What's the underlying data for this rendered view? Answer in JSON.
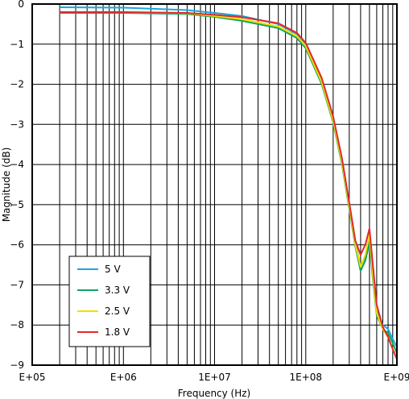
{
  "chart_data": {
    "type": "line",
    "xlabel": "Frequency (Hz)",
    "ylabel": "Magnitude (dB)",
    "xscale": "log",
    "xlim": [
      100000,
      1000000000
    ],
    "ylim": [
      -9,
      0
    ],
    "grid": true,
    "legend_position": "bottom-left",
    "x_tick_labels": [
      "E+05",
      "E+06",
      "1E+07",
      "1E+08",
      "E+09"
    ],
    "y_tick_labels": [
      "0",
      "−1",
      "−2",
      "−3",
      "−4",
      "−5",
      "−6",
      "−7",
      "−8",
      "−9"
    ],
    "series": [
      {
        "name": "5 V",
        "color": "#1aa7d9",
        "points": [
          [
            200000,
            -0.08
          ],
          [
            1000000,
            -0.09
          ],
          [
            5000000,
            -0.15
          ],
          [
            10000000,
            -0.22
          ],
          [
            20000000,
            -0.3
          ],
          [
            50000000,
            -0.5
          ],
          [
            80000000,
            -0.75
          ],
          [
            100000000,
            -1.0
          ],
          [
            150000000,
            -1.9
          ],
          [
            200000000,
            -2.85
          ],
          [
            250000000,
            -3.9
          ],
          [
            300000000,
            -5.0
          ],
          [
            350000000,
            -5.95
          ],
          [
            400000000,
            -6.55
          ],
          [
            450000000,
            -6.3
          ],
          [
            500000000,
            -5.85
          ],
          [
            550000000,
            -6.8
          ],
          [
            600000000,
            -7.6
          ],
          [
            700000000,
            -8.0
          ],
          [
            800000000,
            -8.1
          ],
          [
            900000000,
            -8.35
          ],
          [
            1000000000,
            -8.55
          ]
        ]
      },
      {
        "name": "3.3 V",
        "color": "#0fa35f",
        "points": [
          [
            200000,
            -0.22
          ],
          [
            1000000,
            -0.22
          ],
          [
            5000000,
            -0.25
          ],
          [
            10000000,
            -0.32
          ],
          [
            20000000,
            -0.42
          ],
          [
            50000000,
            -0.6
          ],
          [
            80000000,
            -0.85
          ],
          [
            100000000,
            -1.1
          ],
          [
            150000000,
            -2.0
          ],
          [
            200000000,
            -2.95
          ],
          [
            250000000,
            -4.0
          ],
          [
            300000000,
            -5.1
          ],
          [
            350000000,
            -6.05
          ],
          [
            400000000,
            -6.65
          ],
          [
            450000000,
            -6.4
          ],
          [
            500000000,
            -5.95
          ],
          [
            550000000,
            -6.95
          ],
          [
            600000000,
            -7.75
          ],
          [
            700000000,
            -8.1
          ],
          [
            800000000,
            -8.2
          ],
          [
            900000000,
            -8.45
          ],
          [
            1000000000,
            -8.7
          ]
        ]
      },
      {
        "name": "2.5 V",
        "color": "#f0e000",
        "points": [
          [
            200000,
            -0.2
          ],
          [
            1000000,
            -0.2
          ],
          [
            5000000,
            -0.23
          ],
          [
            10000000,
            -0.3
          ],
          [
            20000000,
            -0.38
          ],
          [
            50000000,
            -0.56
          ],
          [
            80000000,
            -0.8
          ],
          [
            100000000,
            -1.05
          ],
          [
            150000000,
            -1.95
          ],
          [
            200000000,
            -2.9
          ],
          [
            250000000,
            -3.95
          ],
          [
            300000000,
            -5.05
          ],
          [
            350000000,
            -6.0
          ],
          [
            400000000,
            -6.55
          ],
          [
            450000000,
            -6.25
          ],
          [
            500000000,
            -5.75
          ],
          [
            550000000,
            -6.85
          ],
          [
            600000000,
            -7.7
          ],
          [
            700000000,
            -8.1
          ],
          [
            800000000,
            -8.3
          ],
          [
            900000000,
            -8.6
          ],
          [
            1000000000,
            -8.85
          ]
        ]
      },
      {
        "name": "1.8 V",
        "color": "#e0282d",
        "points": [
          [
            200000,
            -0.2
          ],
          [
            1000000,
            -0.2
          ],
          [
            5000000,
            -0.22
          ],
          [
            10000000,
            -0.27
          ],
          [
            20000000,
            -0.33
          ],
          [
            50000000,
            -0.48
          ],
          [
            80000000,
            -0.72
          ],
          [
            100000000,
            -0.97
          ],
          [
            150000000,
            -1.85
          ],
          [
            200000000,
            -2.8
          ],
          [
            250000000,
            -3.85
          ],
          [
            300000000,
            -4.95
          ],
          [
            350000000,
            -5.9
          ],
          [
            400000000,
            -6.25
          ],
          [
            450000000,
            -6.0
          ],
          [
            500000000,
            -5.6
          ],
          [
            550000000,
            -6.6
          ],
          [
            600000000,
            -7.5
          ],
          [
            700000000,
            -8.05
          ],
          [
            800000000,
            -8.3
          ],
          [
            900000000,
            -8.6
          ],
          [
            1000000000,
            -8.85
          ]
        ]
      }
    ]
  }
}
